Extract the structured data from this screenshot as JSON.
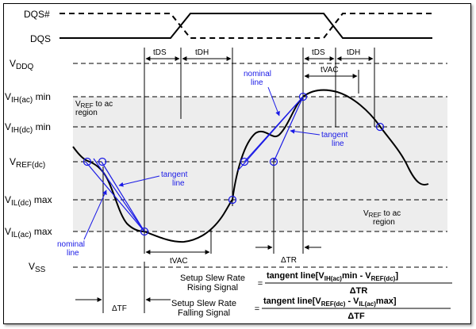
{
  "signals": {
    "dqs_bar": "DQS#",
    "dqs": "DQS"
  },
  "levels": {
    "vddq": {
      "main": "V",
      "sub": "DDQ",
      "tail": ""
    },
    "vih_ac": {
      "main": "V",
      "sub": "IH(ac)",
      "tail": " min"
    },
    "vih_dc": {
      "main": "V",
      "sub": "IH(dc)",
      "tail": " min"
    },
    "vref_dc": {
      "main": "V",
      "sub": "REF(dc)",
      "tail": ""
    },
    "vil_dc": {
      "main": "V",
      "sub": "IL(dc)",
      "tail": " max"
    },
    "vil_ac": {
      "main": "V",
      "sub": "IL(ac)",
      "tail": " max"
    },
    "vss": {
      "main": "V",
      "sub": "SS",
      "tail": ""
    }
  },
  "timing": {
    "tds_1": "tDS",
    "tdh_1": "tDH",
    "tds_2": "tDS",
    "tdh_2": "tDH",
    "tvac_top": "tVAC",
    "tvac_bottom": "tVAC",
    "delta_tr": "ΔTR",
    "delta_tf": "ΔTF"
  },
  "regions": {
    "upper": {
      "v": "V",
      "sub": "REF",
      "text": " to ac",
      "line2": "region"
    },
    "lower": {
      "v": "V",
      "sub": "REF",
      "text": " to ac",
      "line2": "region"
    }
  },
  "annotations": {
    "nominal_top_1": "nominal",
    "nominal_top_2": "line",
    "tangent_top_1": "tangent",
    "tangent_top_2": "line",
    "tangent_bottom_1": "tangent",
    "tangent_bottom_2": "line",
    "nominal_bottom_1": "nominal",
    "nominal_bottom_2": "line"
  },
  "equations": {
    "rising_label_1": "Setup Slew Rate",
    "rising_label_2": "Rising Signal",
    "rising_num_pre": "tangent line[V",
    "rising_num_sub1": "IH(ac)",
    "rising_num_mid": "min - V",
    "rising_num_sub2": "REF(dc)",
    "rising_num_post": "]",
    "rising_den": "ΔTR",
    "falling_label_1": "Setup Slew Rate",
    "falling_label_2": "Falling Signal",
    "falling_num_pre": "tangent line[V",
    "falling_num_sub1": "REF(dc)",
    "falling_num_mid": " - V",
    "falling_num_sub2": "IL(ac)",
    "falling_num_post": "max]",
    "falling_den": "ΔTF",
    "equals": "="
  },
  "colors": {
    "signal": "#000000",
    "annotation": "#1a1ae6",
    "region_fill": "#ededed"
  }
}
